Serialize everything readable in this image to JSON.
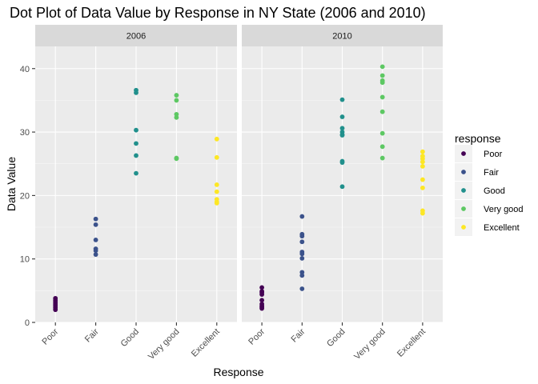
{
  "chart_data": {
    "type": "scatter",
    "title": "Dot Plot of Data Value by Response in NY State (2006 and 2010)",
    "xlabel": "Response",
    "ylabel": "Data Value",
    "categories": [
      "Poor",
      "Fair",
      "Good",
      "Very good",
      "Excellent"
    ],
    "ylim": [
      0,
      43.5
    ],
    "yticks": [
      0,
      10,
      20,
      30,
      40
    ],
    "grid": true,
    "legend": {
      "title": "response",
      "position": "right",
      "entries": [
        {
          "label": "Poor",
          "color": "#440154"
        },
        {
          "label": "Fair",
          "color": "#3B528B"
        },
        {
          "label": "Good",
          "color": "#21908C"
        },
        {
          "label": "Very good",
          "color": "#5DC863"
        },
        {
          "label": "Excellent",
          "color": "#FDE725"
        }
      ]
    },
    "facets": [
      {
        "label": "2006",
        "series": [
          {
            "name": "Poor",
            "values": [
              3.8,
              3.5,
              3.2,
              2.9,
              2.6,
              2.3,
              2.0
            ]
          },
          {
            "name": "Fair",
            "values": [
              16.3,
              15.4,
              13.0,
              11.6,
              11.3,
              10.7
            ]
          },
          {
            "name": "Good",
            "values": [
              36.6,
              36.2,
              30.3,
              28.2,
              26.3,
              23.5
            ]
          },
          {
            "name": "Very good",
            "values": [
              35.8,
              35.0,
              32.8,
              32.3,
              25.9,
              25.8
            ]
          },
          {
            "name": "Excellent",
            "values": [
              28.9,
              26.0,
              21.7,
              20.6,
              19.4,
              19.0,
              18.8
            ]
          }
        ]
      },
      {
        "label": "2010",
        "series": [
          {
            "name": "Poor",
            "values": [
              5.5,
              4.9,
              4.7,
              4.4,
              3.5,
              2.9,
              2.6,
              2.4,
              2.2
            ]
          },
          {
            "name": "Fair",
            "values": [
              16.7,
              13.9,
              13.6,
              12.7,
              11.1,
              10.8,
              10.1,
              7.9,
              7.4,
              5.3
            ]
          },
          {
            "name": "Good",
            "values": [
              35.1,
              32.4,
              30.6,
              30.0,
              29.6,
              29.5,
              25.4,
              25.2,
              21.4
            ]
          },
          {
            "name": "Very good",
            "values": [
              40.3,
              38.9,
              38.1,
              37.8,
              35.5,
              33.2,
              29.8,
              27.7,
              25.9
            ]
          },
          {
            "name": "Excellent",
            "values": [
              26.9,
              26.2,
              25.8,
              25.3,
              24.6,
              22.5,
              21.2,
              17.6,
              17.2
            ]
          }
        ]
      }
    ]
  }
}
